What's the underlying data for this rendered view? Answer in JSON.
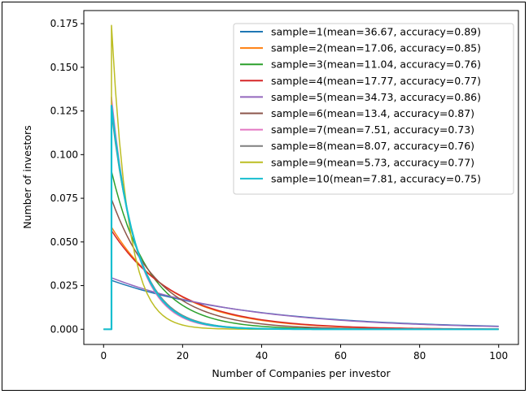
{
  "chart_data": {
    "type": "line",
    "title": "",
    "xlabel": "Number of Companies per investor",
    "ylabel": "Number of investors",
    "xlim": [
      -5,
      105
    ],
    "ylim": [
      -0.0087,
      0.1825
    ],
    "xticks": [
      0,
      20,
      40,
      60,
      80,
      100
    ],
    "xtick_labels": [
      "0",
      "20",
      "40",
      "60",
      "80",
      "100"
    ],
    "yticks": [
      0.0,
      0.025,
      0.05,
      0.075,
      0.1,
      0.125,
      0.15,
      0.175
    ],
    "ytick_labels": [
      "0.000",
      "0.025",
      "0.050",
      "0.075",
      "0.100",
      "0.125",
      "0.150",
      "0.175"
    ],
    "grid": false,
    "legend_position": "top-right",
    "curve_shape": "geometric: y = 0 for x < 2, y = p*(1-p)^(x-2) for x >= 2, p = 1/(mean-1)",
    "x_start": 0,
    "x_end": 100,
    "series": [
      {
        "name": "sample=1(mean=36.67, accuracy=0.89)",
        "mean": 36.67,
        "peak": 0.028,
        "color": "#1f77b4"
      },
      {
        "name": "sample=2(mean=17.06, accuracy=0.85)",
        "mean": 17.06,
        "peak": 0.0585,
        "color": "#ff7f0e"
      },
      {
        "name": "sample=3(mean=11.04, accuracy=0.76)",
        "mean": 11.04,
        "peak": 0.0905,
        "color": "#2ca02c"
      },
      {
        "name": "sample=4(mean=17.77, accuracy=0.77)",
        "mean": 17.77,
        "peak": 0.0565,
        "color": "#d62728"
      },
      {
        "name": "sample=5(mean=34.73, accuracy=0.86)",
        "mean": 34.73,
        "peak": 0.0295,
        "color": "#9467bd"
      },
      {
        "name": "sample=6(mean=13.4, accuracy=0.87)",
        "mean": 13.4,
        "peak": 0.0745,
        "color": "#8c564b"
      },
      {
        "name": "sample=7(mean=7.51, accuracy=0.73)",
        "mean": 7.51,
        "peak": 0.133,
        "color": "#e377c2"
      },
      {
        "name": "sample=8(mean=8.07, accuracy=0.76)",
        "mean": 8.07,
        "peak": 0.124,
        "color": "#7f7f7f"
      },
      {
        "name": "sample=9(mean=5.73, accuracy=0.77)",
        "mean": 5.73,
        "peak": 0.174,
        "color": "#bcbd22"
      },
      {
        "name": "sample=10(mean=7.81, accuracy=0.75)",
        "mean": 7.81,
        "peak": 0.128,
        "color": "#17becf"
      }
    ]
  }
}
